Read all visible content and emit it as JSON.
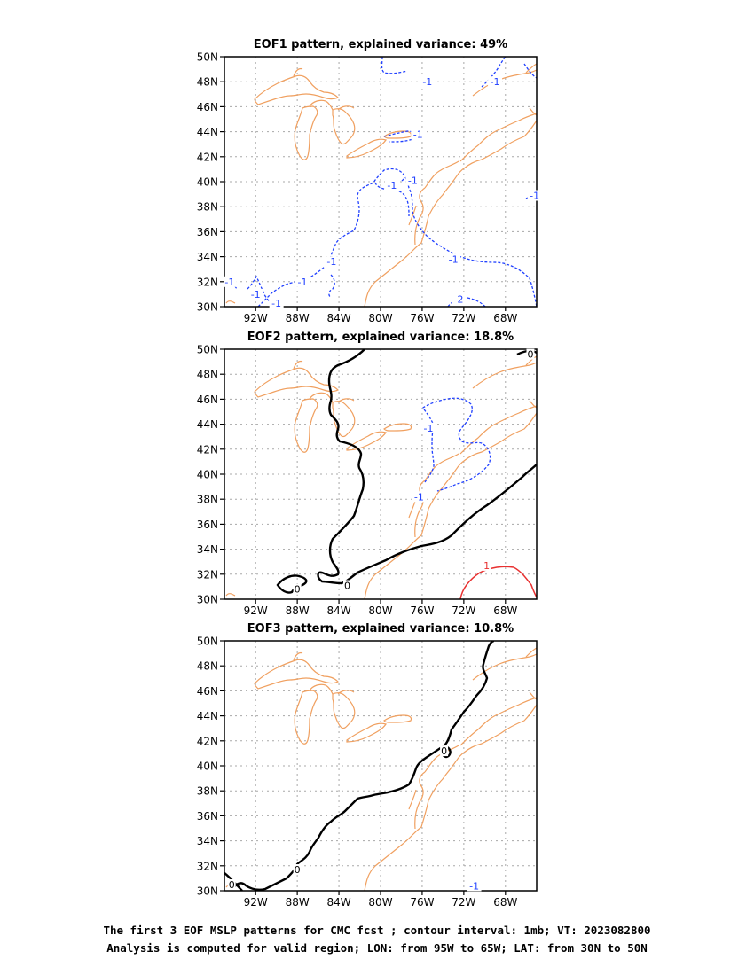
{
  "panels": [
    {
      "title": "EOF1 pattern, explained variance: 49%",
      "contour_labels": [
        {
          "text": "-1",
          "lon": -78.9,
          "lat": 39.7,
          "color": "#2040ff"
        },
        {
          "text": "-1",
          "lon": -76.9,
          "lat": 40.1,
          "color": "#2040ff"
        },
        {
          "text": "-1",
          "lon": -76.4,
          "lat": 43.8,
          "color": "#2040ff"
        },
        {
          "text": "-1",
          "lon": -75.5,
          "lat": 48.0,
          "color": "#2040ff"
        },
        {
          "text": "-1",
          "lon": -69.0,
          "lat": 48.0,
          "color": "#2040ff"
        },
        {
          "text": "-1",
          "lon": -84.7,
          "lat": 33.6,
          "color": "#2040ff"
        },
        {
          "text": "-1",
          "lon": -87.5,
          "lat": 32.0,
          "color": "#2040ff"
        },
        {
          "text": "-1",
          "lon": -94.5,
          "lat": 32.0,
          "color": "#2040ff"
        },
        {
          "text": "-1",
          "lon": -92.0,
          "lat": 31.0,
          "color": "#2040ff"
        },
        {
          "text": "-1",
          "lon": -90.0,
          "lat": 30.3,
          "color": "#2040ff"
        },
        {
          "text": "-1",
          "lon": -73.0,
          "lat": 33.8,
          "color": "#2040ff"
        },
        {
          "text": "-2",
          "lon": -72.5,
          "lat": 30.6,
          "color": "#2040ff"
        },
        {
          "text": "-1",
          "lon": -65.2,
          "lat": 38.9,
          "color": "#2040ff"
        }
      ]
    },
    {
      "title": "EOF2 pattern, explained variance: 18.8%",
      "contour_labels": [
        {
          "text": "-1",
          "lon": -75.4,
          "lat": 43.7,
          "color": "#2040ff"
        },
        {
          "text": "-1",
          "lon": -76.3,
          "lat": 38.2,
          "color": "#2040ff"
        },
        {
          "text": "1",
          "lon": -69.8,
          "lat": 32.7,
          "color": "#e83030"
        },
        {
          "text": "0",
          "lon": -88.0,
          "lat": 30.8,
          "color": "#000000"
        },
        {
          "text": "0",
          "lon": -83.2,
          "lat": 31.1,
          "color": "#000000"
        },
        {
          "text": "0",
          "lon": -65.6,
          "lat": 49.6,
          "color": "#000000"
        }
      ]
    },
    {
      "title": "EOF3 pattern, explained variance: 10.8%",
      "contour_labels": [
        {
          "text": "0",
          "lon": -88.0,
          "lat": 31.7,
          "color": "#000000"
        },
        {
          "text": "0",
          "lon": -94.3,
          "lat": 30.5,
          "color": "#000000"
        },
        {
          "text": "0",
          "lon": -73.9,
          "lat": 41.2,
          "color": "#000000"
        },
        {
          "text": "-1",
          "lon": -71.0,
          "lat": 30.4,
          "color": "#2040ff"
        }
      ]
    }
  ],
  "axes": {
    "x_ticks": [
      "92W",
      "88W",
      "84W",
      "80W",
      "76W",
      "72W",
      "68W"
    ],
    "x_tick_values": [
      -92,
      -88,
      -84,
      -80,
      -76,
      -72,
      -68
    ],
    "y_ticks": [
      "30N",
      "32N",
      "34N",
      "36N",
      "38N",
      "40N",
      "42N",
      "44N",
      "46N",
      "48N",
      "50N"
    ],
    "y_tick_values": [
      30,
      32,
      34,
      36,
      38,
      40,
      42,
      44,
      46,
      48,
      50
    ],
    "lon_range": [
      -95,
      -65
    ],
    "lat_range": [
      30,
      50
    ]
  },
  "colors": {
    "coastline": "#f0a060",
    "negative_contour": "#2040ff",
    "zero_contour": "#000000",
    "positive_contour": "#e83030",
    "grid": "#a8a8a8"
  },
  "caption": {
    "line1": "The first 3 EOF MSLP patterns for CMC fcst ; contour interval: 1mb; VT: 2023082800",
    "line2": "Analysis is computed for valid region; LON: from 95W to 65W; LAT: from 30N to 50N"
  }
}
